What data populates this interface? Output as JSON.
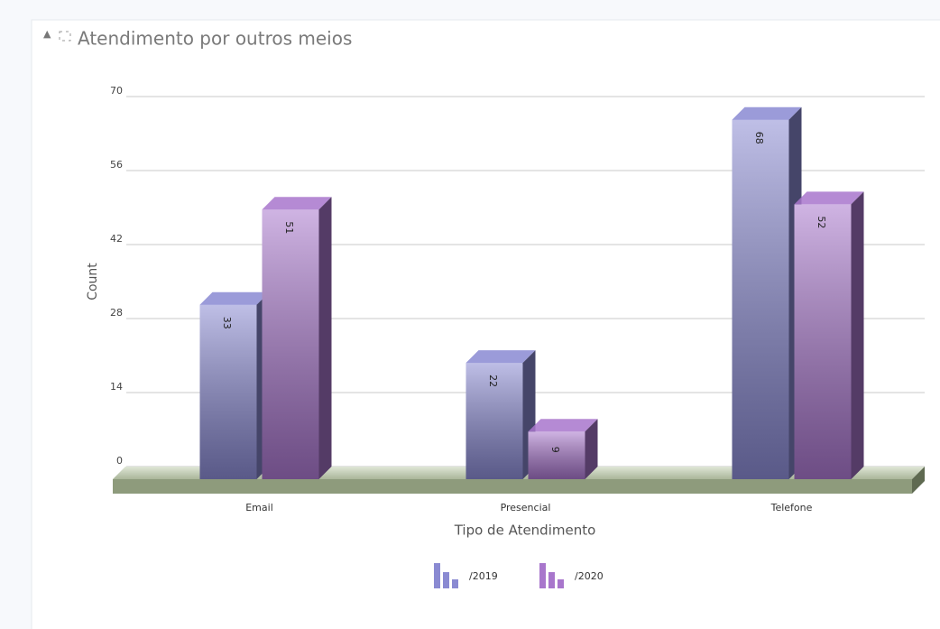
{
  "chart_data": {
    "type": "bar",
    "title": "Atendimento por outros meios",
    "x_label": "Tipo de Atendimento",
    "y_label": "Count",
    "categories": [
      "Email",
      "Presencial",
      "Telefone"
    ],
    "series": [
      {
        "name": "/2019",
        "color": "#8a8ad2",
        "values": [
          33,
          22,
          68
        ]
      },
      {
        "name": "/2020",
        "color": "#a876cc",
        "values": [
          51,
          9,
          52
        ]
      }
    ],
    "ylim": [
      0,
      70
    ],
    "yticks": [
      0,
      14,
      28,
      42,
      56,
      70
    ],
    "grid": true
  }
}
